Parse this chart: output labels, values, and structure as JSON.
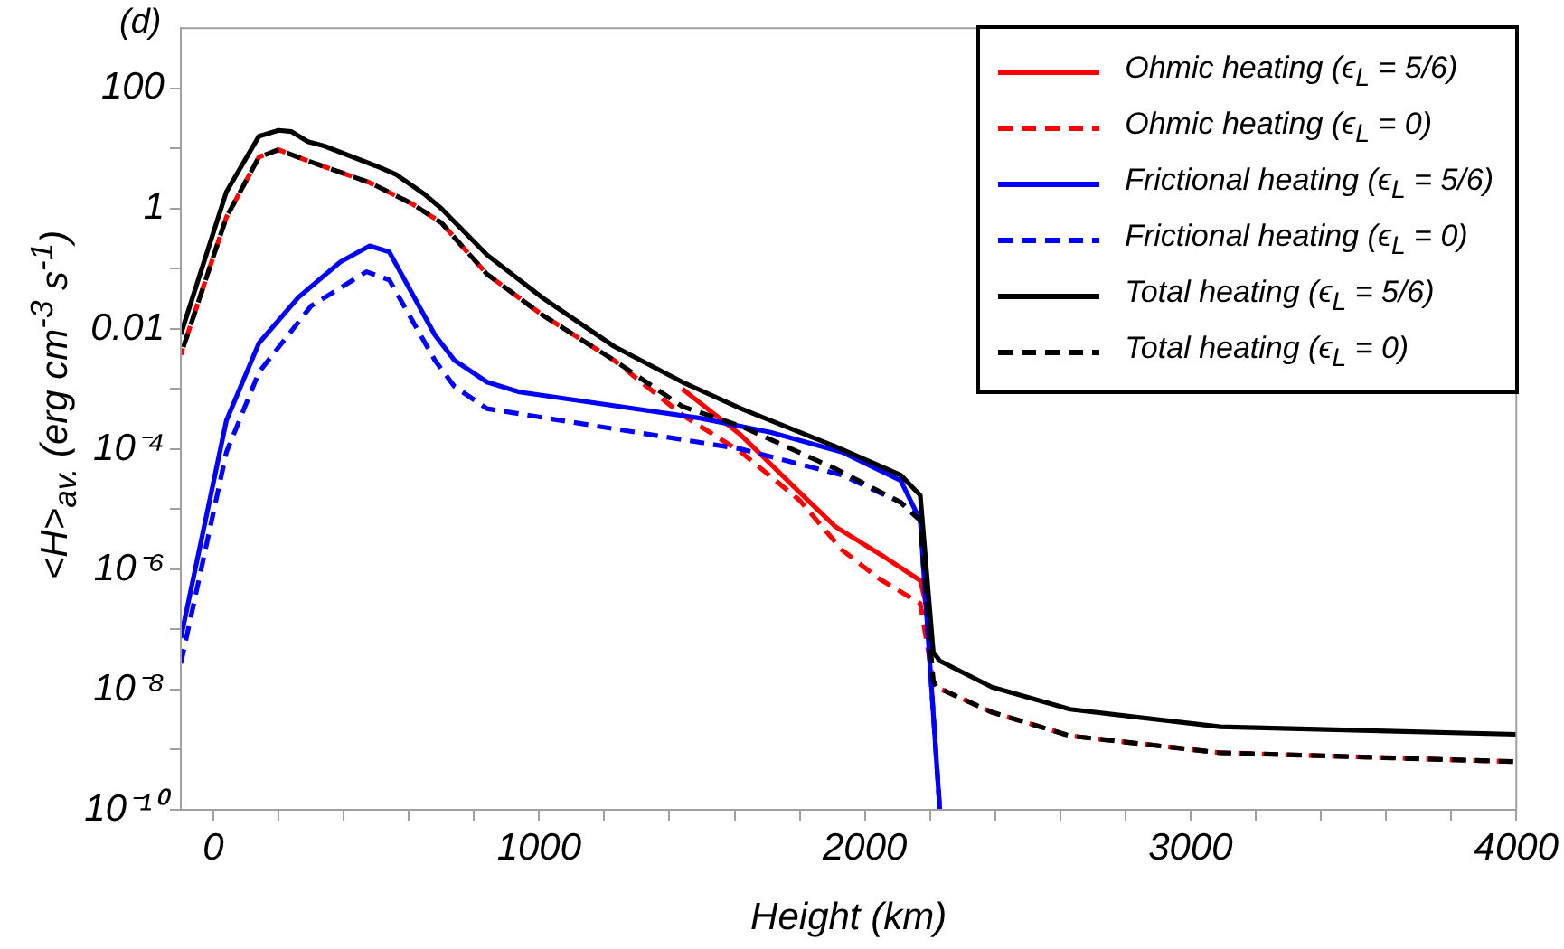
{
  "chart_data": {
    "type": "line",
    "title": "(d)",
    "xlabel": "Height (km)",
    "ylabel": "<H>$_{av.}$ (erg cm$^{-3}$ s$^{-1}$)",
    "log": "y",
    "legend": "top right",
    "marker": "none",
    "xlim": [
      -100,
      4000
    ],
    "xticks": [
      0,
      {
        "value": 200,
        "label": null
      },
      {
        "value": 400,
        "label": null
      },
      {
        "value": 600,
        "label": null
      },
      {
        "value": 800,
        "label": null
      },
      1000,
      {
        "value": 1200,
        "label": null
      },
      {
        "value": 1400,
        "label": null
      },
      {
        "value": 1600,
        "label": null
      },
      {
        "value": 1800,
        "label": null
      },
      2000,
      {
        "value": 2200,
        "label": null
      },
      {
        "value": 2400,
        "label": null
      },
      {
        "value": 2600,
        "label": null
      },
      {
        "value": 2800,
        "label": null
      },
      3000,
      {
        "value": 3200,
        "label": null
      },
      {
        "value": 3400,
        "label": null
      },
      {
        "value": 3600,
        "label": null
      },
      {
        "value": 3800,
        "label": null
      },
      4000
    ],
    "ylim": [
      1e-10,
      1000
    ],
    "yticks": [
      {
        "value": 1e-10,
        "label": "10⁻¹⁰"
      },
      {
        "value": 1e-09,
        "label": null
      },
      {
        "value": 1e-08,
        "label": "10⁻⁸"
      },
      {
        "value": 1e-07,
        "label": null
      },
      {
        "value": 1e-06,
        "label": "10⁻⁶"
      },
      {
        "value": 1e-05,
        "label": null
      },
      {
        "value": 0.0001,
        "label": "10⁻⁴"
      },
      {
        "value": 0.001,
        "label": null
      },
      0.01,
      {
        "value": 0.1,
        "label": null
      },
      1,
      {
        "value": 10,
        "label": null
      },
      100
    ],
    "series": [
      {
        "name": "Ohmic heating (ϵ$_{L}$ = 5/6)",
        "color": "#ff0000",
        "line_style": "solid",
        "x": [
          1440,
          1620,
          1800,
          1910,
          2060,
          2170,
          2190
        ],
        "values": [
          0.001,
          0.00017,
          1.9e-05,
          5.1e-06,
          1.6e-06,
          6.5e-07,
          2.4e-07
        ]
      },
      {
        "name": "Ohmic heating (ϵ$_{L}$ = 0)",
        "color": "#ff0000",
        "line_style": "dashed",
        "x": [
          -100,
          40,
          140,
          200,
          280,
          480,
          610,
          700,
          840,
          1010,
          1230,
          1440,
          1620,
          1800,
          1930,
          2040,
          2170,
          2210,
          2220,
          2390,
          2630,
          3090,
          4000
        ],
        "values": [
          0.0037,
          0.72,
          7.2,
          9.5,
          6.5,
          2.7,
          1.2,
          0.58,
          0.081,
          0.017,
          0.003,
          0.00037,
          8.9e-05,
          1.4e-05,
          2.1e-06,
          7.2e-07,
          2.7e-07,
          1.4e-08,
          1.1e-08,
          4.2e-09,
          1.7e-09,
          8.9e-10,
          6.3e-10
        ]
      },
      {
        "name": "Frictional heating (ϵ$_{L}$ = 5/6)",
        "color": "#0000ff",
        "line_style": "solid",
        "x": [
          -100,
          40,
          140,
          260,
          390,
          480,
          540,
          680,
          740,
          840,
          940,
          1490,
          1710,
          1930,
          2110,
          2170,
          2230
        ],
        "values": [
          7.2e-08,
          0.0003,
          0.0058,
          0.033,
          0.13,
          0.24,
          0.19,
          0.0079,
          0.003,
          0.0013,
          0.00089,
          0.00033,
          0.00019,
          8.9e-05,
          3e-05,
          6.5e-06,
          1e-10
        ]
      },
      {
        "name": "Frictional heating (ϵ$_{L}$ = 0)",
        "color": "#0000ff",
        "line_style": "dashed",
        "x": [
          -100,
          40,
          140,
          300,
          470,
          540,
          680,
          740,
          840,
          1490,
          1620,
          1930,
          2110,
          2170,
          2230
        ],
        "values": [
          2.7e-08,
          8.9e-05,
          0.0019,
          0.024,
          0.089,
          0.065,
          0.003,
          0.0011,
          0.00047,
          0.00013,
          0.0001,
          3.7e-05,
          1.3e-05,
          6.5e-06,
          1e-10
        ]
      },
      {
        "name": "Total heating (ϵ$_{L}$ = 5/6)",
        "color": "#000000",
        "line_style": "solid",
        "x": [
          -100,
          40,
          140,
          200,
          240,
          290,
          340,
          500,
          560,
          650,
          700,
          840,
          1010,
          1230,
          1440,
          1620,
          1910,
          2110,
          2170,
          2210,
          2230,
          2390,
          2630,
          3090,
          4000
        ],
        "values": [
          0.0081,
          1.9,
          16,
          20,
          19,
          13,
          11,
          5.1,
          3.7,
          1.7,
          1.0,
          0.17,
          0.033,
          0.0051,
          0.0013,
          0.00047,
          0.00011,
          3.7e-05,
          1.7e-05,
          4.2e-08,
          3e-08,
          1.1e-08,
          4.7e-09,
          2.4e-09,
          1.8e-09
        ]
      },
      {
        "name": "Total heating (ϵ$_{L}$ = 0)",
        "color": "#000000",
        "line_style": "dashed",
        "x": [
          -100,
          40,
          140,
          200,
          280,
          480,
          610,
          700,
          840,
          1010,
          1230,
          1440,
          1620,
          1910,
          2110,
          2170,
          2210,
          2220,
          2390,
          2630,
          3090,
          4000
        ],
        "values": [
          0.0037,
          0.72,
          7.2,
          9.5,
          6.5,
          2.7,
          1.2,
          0.58,
          0.081,
          0.017,
          0.003,
          0.00051,
          0.00024,
          4.7e-05,
          1.3e-05,
          6.5e-06,
          1.4e-08,
          1.1e-08,
          4.2e-09,
          1.7e-09,
          8.9e-10,
          6.3e-10
        ]
      }
    ]
  }
}
